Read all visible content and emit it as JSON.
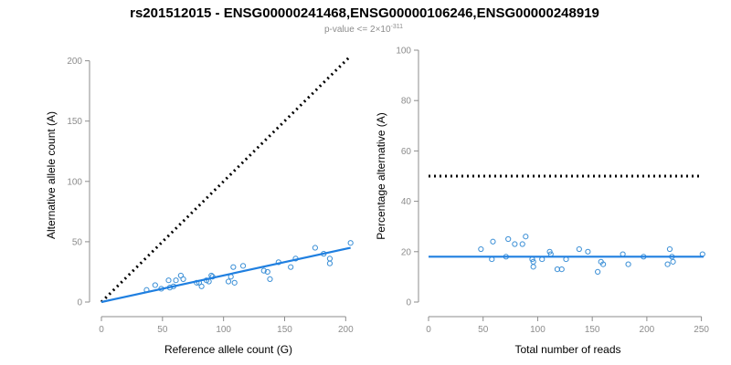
{
  "title": "rs201512015 - ENSG00000241468,ENSG00000106246,ENSG00000248919",
  "subtitle": {
    "prefix": "p-value <= 2×10",
    "exponent": "-311"
  },
  "colors": {
    "points": "#3b8fd6",
    "fit": "#1f7fe0",
    "reference": "#000000",
    "axis": "#8c8c8c"
  },
  "chart_data": [
    {
      "type": "scatter",
      "xlabel": "Reference allele count (G)",
      "ylabel": "Alternative allele count (A)",
      "xlim": [
        0,
        205
      ],
      "ylim": [
        0,
        205
      ],
      "xticks": [
        0,
        50,
        100,
        150,
        200
      ],
      "yticks": [
        0,
        50,
        100,
        150,
        200
      ],
      "grid": false,
      "points": [
        [
          37,
          10
        ],
        [
          44,
          14
        ],
        [
          49,
          11
        ],
        [
          55,
          18
        ],
        [
          56,
          12
        ],
        [
          59,
          13
        ],
        [
          61,
          18
        ],
        [
          65,
          22
        ],
        [
          67,
          19
        ],
        [
          78,
          16
        ],
        [
          80,
          16
        ],
        [
          82,
          13
        ],
        [
          86,
          18
        ],
        [
          88,
          17
        ],
        [
          90,
          22
        ],
        [
          91,
          21
        ],
        [
          104,
          17
        ],
        [
          106,
          21
        ],
        [
          109,
          16
        ],
        [
          108,
          29
        ],
        [
          116,
          30
        ],
        [
          133,
          26
        ],
        [
          136,
          25
        ],
        [
          138,
          19
        ],
        [
          145,
          33
        ],
        [
          155,
          29
        ],
        [
          159,
          36
        ],
        [
          175,
          45
        ],
        [
          182,
          40
        ],
        [
          187,
          36
        ],
        [
          187,
          32
        ],
        [
          204,
          49
        ]
      ],
      "reference_line": {
        "style": "dotted",
        "from": [
          0,
          0
        ],
        "to": [
          204,
          204
        ]
      },
      "fit_line": {
        "from": [
          0,
          0
        ],
        "to": [
          204,
          45
        ]
      }
    },
    {
      "type": "scatter",
      "xlabel": "Total number of reads",
      "ylabel": "Percentage alternative (A)",
      "xlim": [
        0,
        252
      ],
      "ylim": [
        0,
        100
      ],
      "xticks": [
        0,
        50,
        100,
        150,
        200,
        250
      ],
      "yticks": [
        0,
        20,
        40,
        60,
        80,
        100
      ],
      "grid": false,
      "points": [
        [
          48,
          21
        ],
        [
          58,
          17
        ],
        [
          59,
          24
        ],
        [
          71,
          18
        ],
        [
          73,
          25
        ],
        [
          79,
          23
        ],
        [
          86,
          23
        ],
        [
          89,
          26
        ],
        [
          95,
          17
        ],
        [
          96,
          14
        ],
        [
          96,
          16
        ],
        [
          104,
          17
        ],
        [
          111,
          20
        ],
        [
          112,
          19
        ],
        [
          118,
          13
        ],
        [
          122,
          13
        ],
        [
          126,
          17
        ],
        [
          138,
          21
        ],
        [
          146,
          20
        ],
        [
          155,
          12
        ],
        [
          158,
          16
        ],
        [
          160,
          15
        ],
        [
          178,
          19
        ],
        [
          183,
          15
        ],
        [
          197,
          18
        ],
        [
          219,
          15
        ],
        [
          221,
          21
        ],
        [
          223,
          18
        ],
        [
          224,
          16
        ],
        [
          251,
          19
        ]
      ],
      "reference_line": {
        "style": "dotted",
        "from": [
          0,
          50
        ],
        "to": [
          250,
          50
        ]
      },
      "fit_line": {
        "from": [
          0,
          18
        ],
        "to": [
          252,
          18
        ]
      }
    }
  ]
}
